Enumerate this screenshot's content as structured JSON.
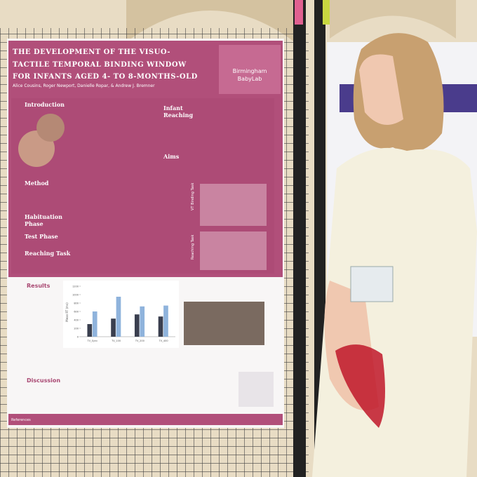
{
  "poster": {
    "title_lines": [
      "THE DEVELOPMENT OF THE VISUO-",
      "TACTILE TEMPORAL BINDING WINDOW",
      "FOR INFANTS AGED 4- TO 8-MONTHS-OLD"
    ],
    "authors": "Alice Cousins, Roger Newport, Danielle Ropar, & Andrew J. Bremner",
    "logo": [
      "Birmingham",
      "BabyLab"
    ],
    "headings": {
      "introduction": "Introduction",
      "infant_reaching": [
        "Infant",
        "Reaching"
      ],
      "aims": "Aims",
      "method": "Method",
      "habituation": [
        "Habituation",
        "Phase"
      ],
      "test": "Test Phase",
      "reaching": "Reaching Task",
      "results": "Results",
      "discussion": "Discussion",
      "references": "References"
    },
    "task_labels": [
      "VT Binding Task",
      "Reaching Task"
    ],
    "results_chart": {
      "y_label": "Mean RT (ms)",
      "categories": [
        "TV_Sync",
        "TV_100",
        "TV_200",
        "TV_400"
      ],
      "series": [
        {
          "color": "#3a3f4f",
          "values": [
            300,
            430,
            530,
            480
          ]
        },
        {
          "color": "#8fb3dc",
          "values": [
            600,
            950,
            720,
            740
          ]
        }
      ],
      "ylim": [
        0,
        1200
      ],
      "yticks": [
        0,
        200,
        400,
        600,
        800,
        1000,
        1200
      ]
    }
  }
}
